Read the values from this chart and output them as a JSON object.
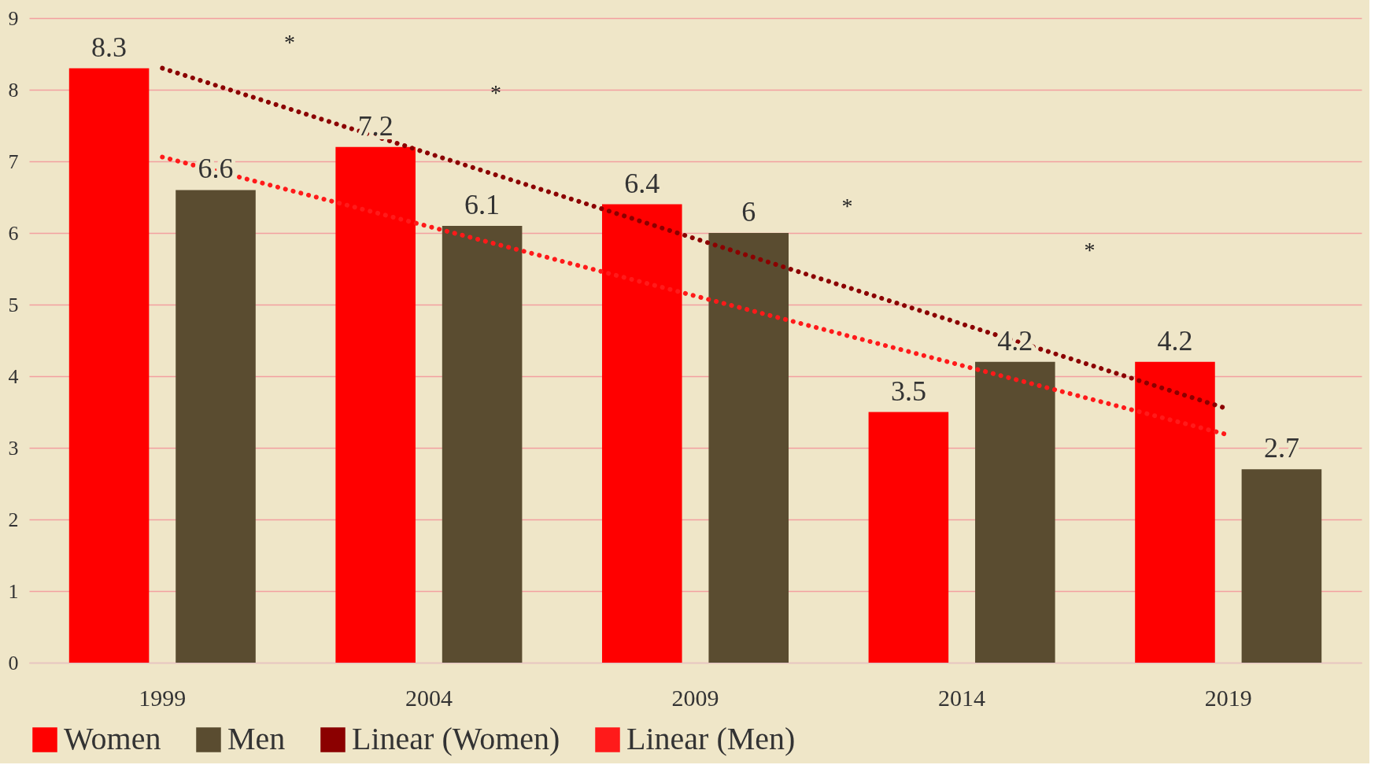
{
  "chart_data": {
    "type": "bar",
    "categories": [
      "1999",
      "2004",
      "2009",
      "2014",
      "2019"
    ],
    "series": [
      {
        "name": "Women",
        "color": "#ff0000",
        "values": [
          8.3,
          7.2,
          6.4,
          3.5,
          4.2
        ],
        "value_labels": [
          "8.3",
          "7.2",
          "6.4",
          "3.5",
          "4.2"
        ]
      },
      {
        "name": "Men",
        "color": "#5a4c30",
        "values": [
          6.6,
          6.1,
          6,
          4.2,
          2.7
        ],
        "value_labels": [
          "6.6",
          "6.1",
          "6",
          "4.2",
          "2.7"
        ]
      },
      {
        "name": "Linear (Women)",
        "color": "#8b0000",
        "type": "line",
        "line_style": "dotted",
        "values": [
          8.3,
          7.11,
          5.92,
          4.73,
          3.54
        ]
      },
      {
        "name": "Linear (Men)",
        "color": "#ff1a1a",
        "type": "line",
        "line_style": "dotted",
        "values": [
          7.06,
          6.09,
          5.12,
          4.15,
          3.18
        ]
      }
    ],
    "ylim": [
      0,
      9
    ],
    "yticks": [
      0,
      1,
      2,
      3,
      4,
      5,
      6,
      7,
      8,
      9
    ],
    "grid": "y",
    "legend": "bottom",
    "annotations": [
      "*",
      "*",
      "*",
      "*"
    ]
  }
}
